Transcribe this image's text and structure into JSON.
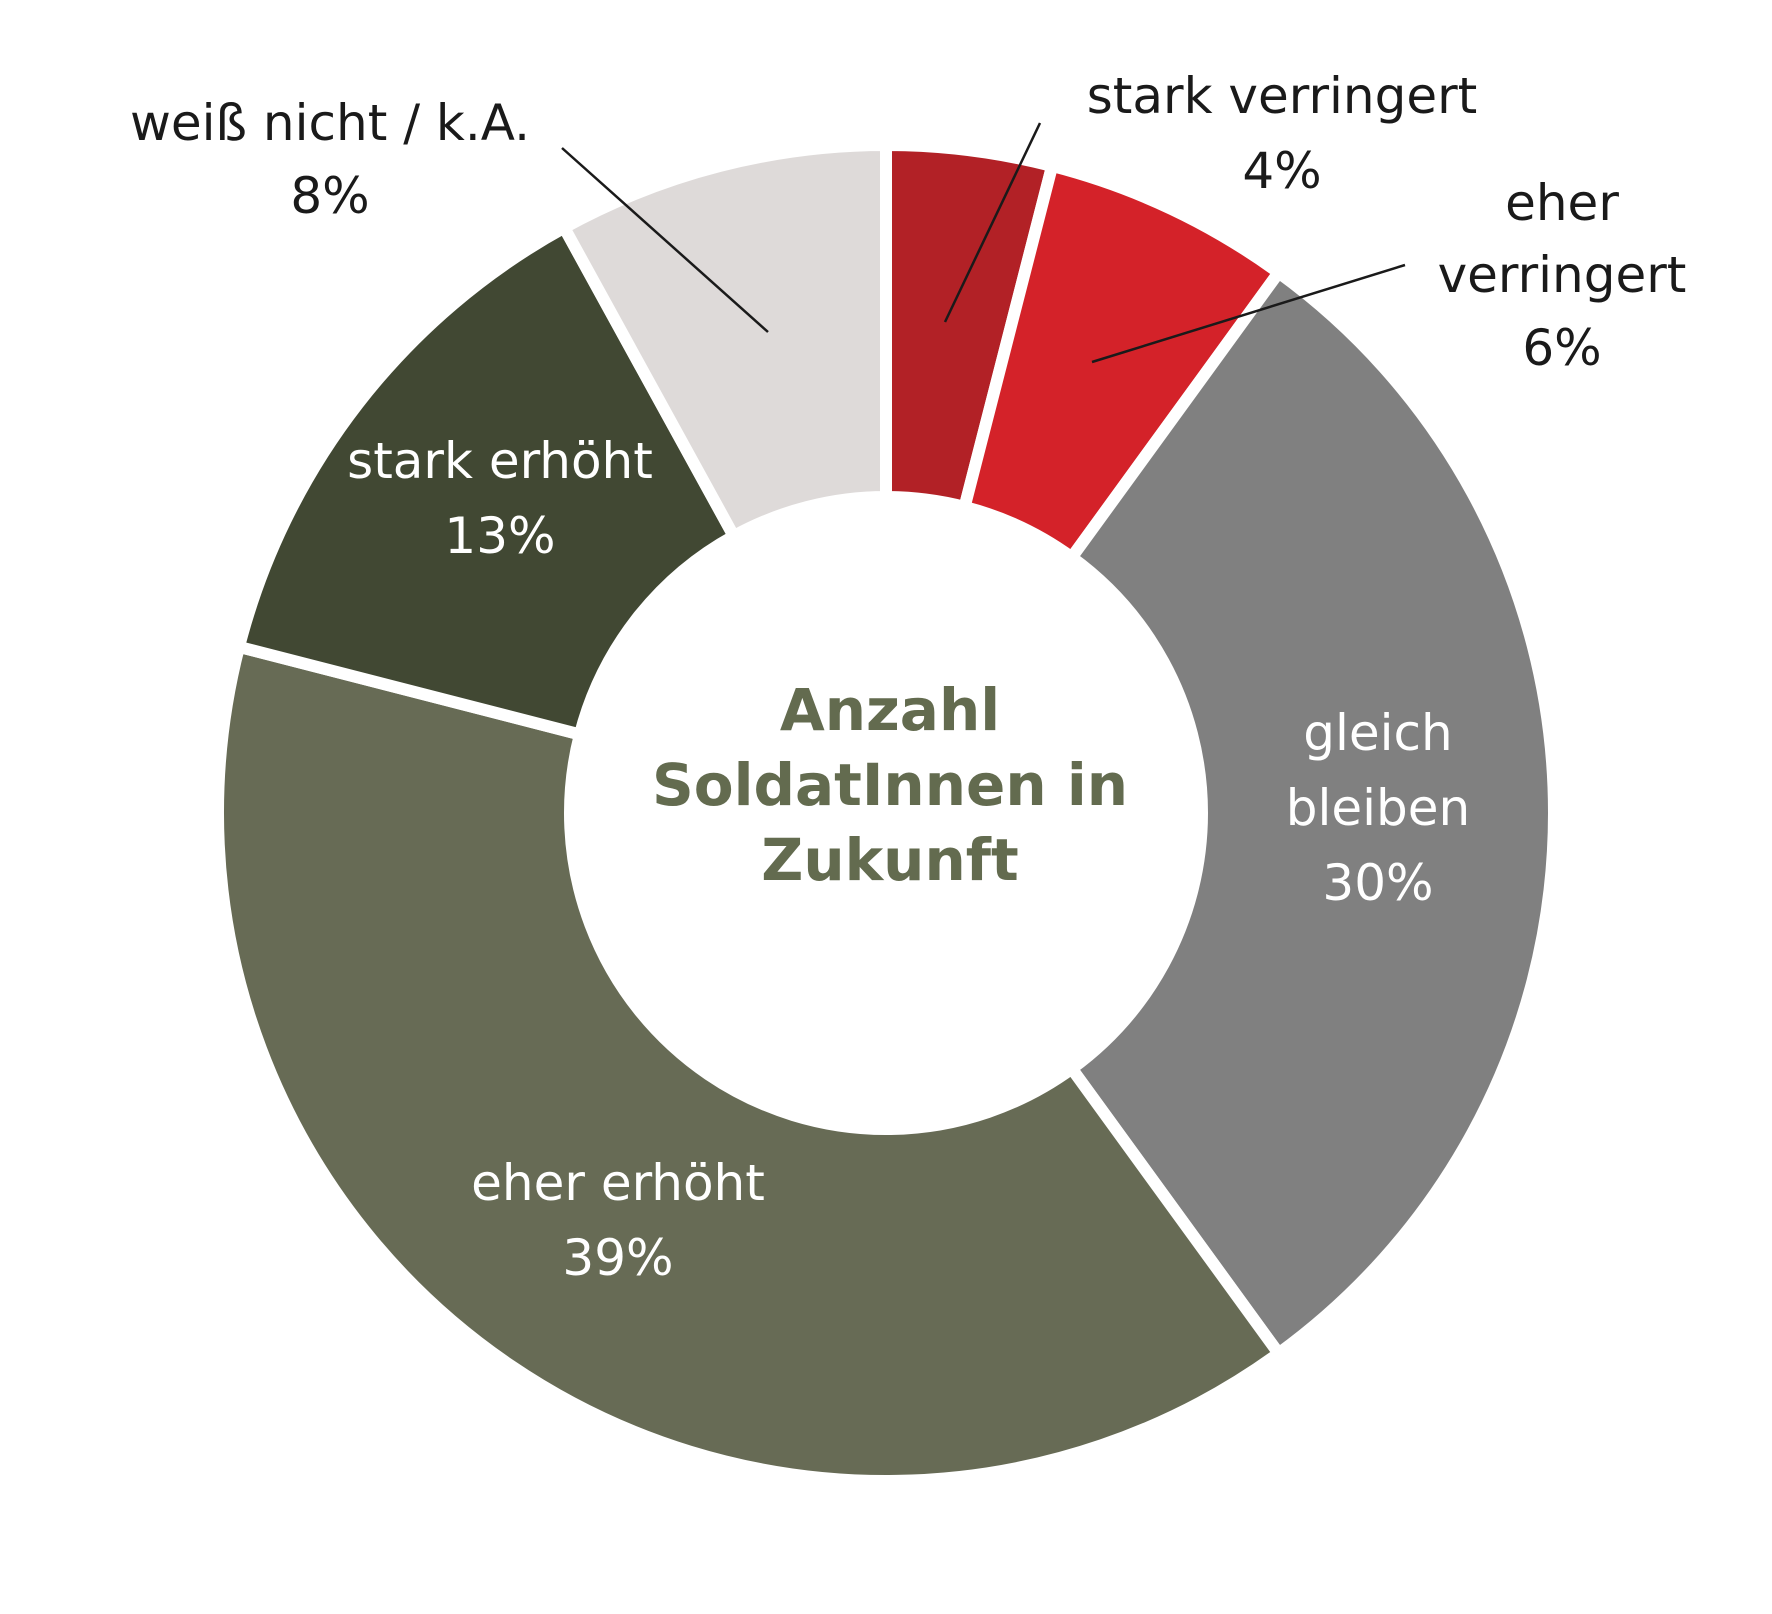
{
  "chart_data": {
    "type": "pie",
    "title": "",
    "center_label": [
      "Anzahl",
      "SoldatInnen in",
      "Zukunft"
    ],
    "slices": [
      {
        "label": "stark verringert",
        "label_lines": [
          "stark verringert"
        ],
        "value": 4,
        "value_label": "4%",
        "color": "#b22126",
        "label_position": "outside"
      },
      {
        "label": "eher verringert",
        "label_lines": [
          "eher",
          "verringert"
        ],
        "value": 6,
        "value_label": "6%",
        "color": "#d42229",
        "label_position": "outside"
      },
      {
        "label": "gleich bleiben",
        "label_lines": [
          "gleich",
          "bleiben"
        ],
        "value": 30,
        "value_label": "30%",
        "color": "#808080",
        "label_position": "inside"
      },
      {
        "label": "eher erhöht",
        "label_lines": [
          "eher erhöht"
        ],
        "value": 39,
        "value_label": "39%",
        "color": "#676b55",
        "label_position": "inside"
      },
      {
        "label": "stark erhöht",
        "label_lines": [
          "stark erhöht"
        ],
        "value": 13,
        "value_label": "13%",
        "color": "#414833",
        "label_position": "inside"
      },
      {
        "label": "weiß nicht / k.A.",
        "label_lines": [
          "weiß nicht / k.A."
        ],
        "value": 8,
        "value_label": "8%",
        "color": "#dedad9",
        "label_position": "outside"
      }
    ],
    "legend": "none",
    "donut": true
  }
}
